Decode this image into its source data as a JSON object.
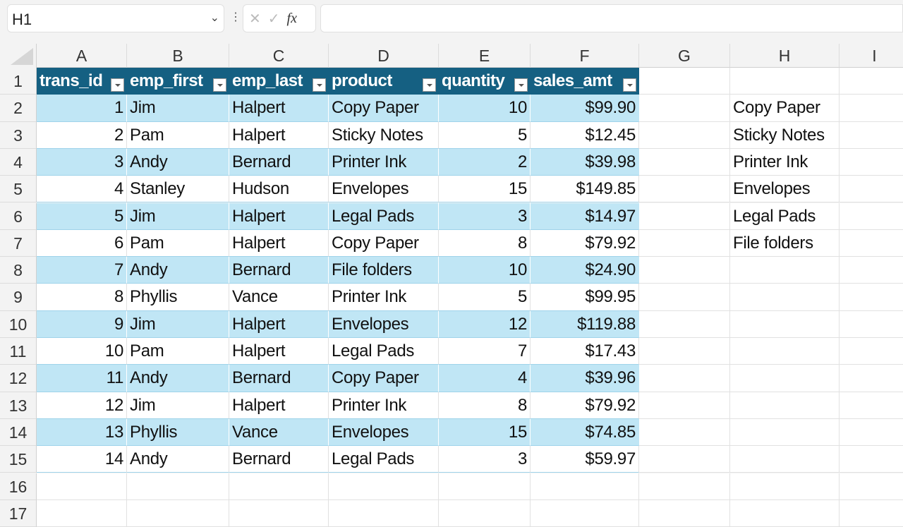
{
  "name_box": "H1",
  "formula_bar": {
    "cancel_icon": "x-icon",
    "enter_icon": "check-icon",
    "fx_label": "fx",
    "value": ""
  },
  "columns": [
    "A",
    "B",
    "C",
    "D",
    "E",
    "F",
    "G",
    "H",
    "I"
  ],
  "rows": [
    "1",
    "2",
    "3",
    "4",
    "5",
    "6",
    "7",
    "8",
    "9",
    "10",
    "11",
    "12",
    "13",
    "14",
    "15",
    "16",
    "17"
  ],
  "table": {
    "headers": [
      "trans_id",
      "emp_first",
      "emp_last",
      "product",
      "quantity",
      "sales_amt"
    ],
    "rows": [
      [
        "1",
        "Jim",
        "Halpert",
        "Copy Paper",
        "10",
        "$99.90"
      ],
      [
        "2",
        "Pam",
        "Halpert",
        "Sticky Notes",
        "5",
        "$12.45"
      ],
      [
        "3",
        "Andy",
        "Bernard",
        "Printer Ink",
        "2",
        "$39.98"
      ],
      [
        "4",
        "Stanley",
        "Hudson",
        "Envelopes",
        "15",
        "$149.85"
      ],
      [
        "5",
        "Jim",
        "Halpert",
        "Legal Pads",
        "3",
        "$14.97"
      ],
      [
        "6",
        "Pam",
        "Halpert",
        "Copy Paper",
        "8",
        "$79.92"
      ],
      [
        "7",
        "Andy",
        "Bernard",
        "File folders",
        "10",
        "$24.90"
      ],
      [
        "8",
        "Phyllis",
        "Vance",
        "Printer Ink",
        "5",
        "$99.95"
      ],
      [
        "9",
        "Jim",
        "Halpert",
        "Envelopes",
        "12",
        "$119.88"
      ],
      [
        "10",
        "Pam",
        "Halpert",
        "Legal Pads",
        "7",
        "$17.43"
      ],
      [
        "11",
        "Andy",
        "Bernard",
        "Copy Paper",
        "4",
        "$39.96"
      ],
      [
        "12",
        "Jim",
        "Halpert",
        "Printer Ink",
        "8",
        "$79.92"
      ],
      [
        "13",
        "Phyllis",
        "Vance",
        "Envelopes",
        "15",
        "$74.85"
      ],
      [
        "14",
        "Andy",
        "Bernard",
        "Legal Pads",
        "3",
        "$59.97"
      ]
    ]
  },
  "column_h": [
    "Copy Paper",
    "Sticky Notes",
    "Printer Ink",
    "Envelopes",
    "Legal Pads",
    "File folders"
  ],
  "colors": {
    "header": "#156082",
    "band": "#c0e6f5"
  }
}
